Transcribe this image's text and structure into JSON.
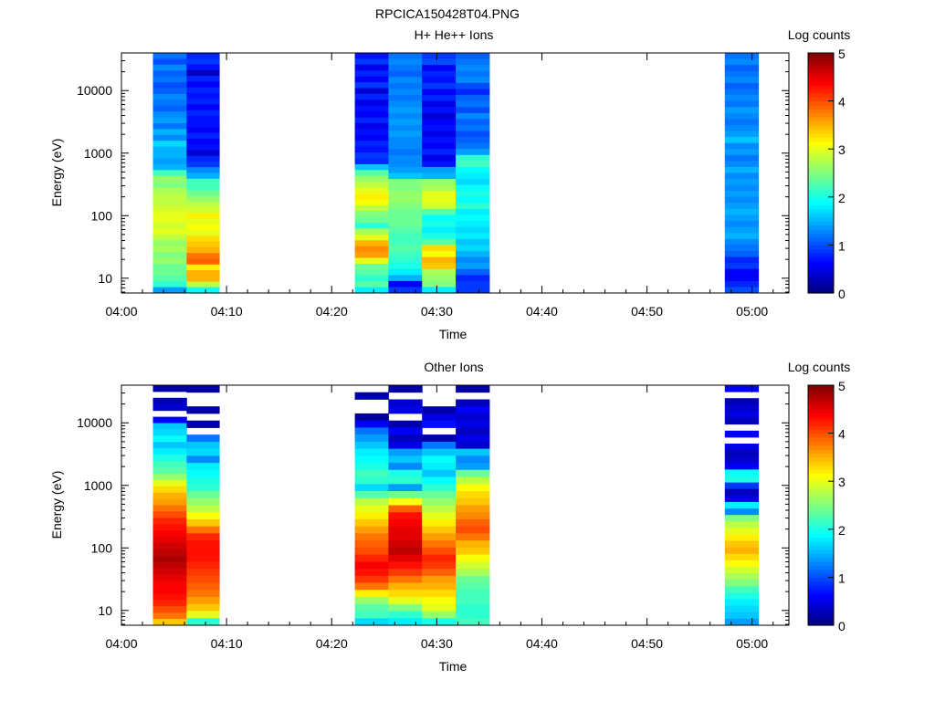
{
  "chart_data": [
    {
      "type": "heatmap",
      "figure_title": "RPCICA150428T04.PNG",
      "title": "H+ He++ Ions",
      "xlabel": "Time",
      "ylabel": "Energy (eV)",
      "xlim_minutes_after_0400": [
        0,
        63.5
      ],
      "x_ticks": [
        "04:00",
        "04:10",
        "04:20",
        "04:30",
        "04:40",
        "04:50",
        "05:00"
      ],
      "x_tick_minutes": [
        0,
        10,
        20,
        30,
        40,
        50,
        60
      ],
      "yscale": "log",
      "ylim": [
        5.8,
        40000
      ],
      "y_ticks": [
        "10",
        "100",
        "1000",
        "10000"
      ],
      "y_tick_values": [
        10,
        100,
        1000,
        10000
      ],
      "colorbar": {
        "label": "Log counts",
        "range": [
          0,
          5
        ],
        "ticks": [
          "0",
          "1",
          "2",
          "3",
          "4",
          "5"
        ]
      },
      "columns": [
        {
          "t_start": 3.0,
          "t_end": 6.2,
          "values_high_to_low": [
            1.2,
            1.0,
            1.3,
            1.1,
            1.2,
            1.0,
            1.1,
            1.3,
            1.2,
            1.1,
            1.3,
            1.4,
            1.2,
            1.5,
            1.3,
            1.7,
            1.5,
            1.5,
            1.4,
            1.5,
            2.2,
            2.6,
            2.5,
            2.7,
            2.8,
            2.8,
            2.9,
            3.0,
            3.0,
            2.9,
            3.0,
            2.8,
            2.6,
            2.7,
            2.5,
            2.6,
            2.4,
            2.4,
            2.3,
            2.1,
            1.4
          ]
        },
        {
          "t_start": 6.2,
          "t_end": 9.3,
          "values_high_to_low": [
            0.8,
            0.9,
            0.7,
            0.3,
            0.8,
            0.6,
            0.8,
            0.7,
            0.8,
            0.6,
            0.8,
            0.7,
            0.7,
            0.6,
            0.8,
            0.6,
            0.7,
            0.4,
            0.8,
            0.9,
            1.3,
            1.5,
            2.2,
            2.2,
            2.4,
            2.6,
            2.8,
            2.9,
            3.2,
            3.0,
            3.1,
            3.0,
            3.3,
            3.4,
            3.5,
            3.8,
            3.9,
            3.2,
            3.5,
            3.5,
            2.8,
            1.9
          ]
        },
        {
          "t_start": 22.2,
          "t_end": 25.4,
          "values_high_to_low": [
            0.7,
            0.9,
            0.5,
            0.8,
            0.6,
            0.9,
            0.4,
            0.8,
            0.5,
            0.7,
            0.6,
            0.8,
            0.5,
            0.7,
            0.6,
            0.8,
            0.7,
            0.9,
            0.8,
            1.6,
            2.3,
            2.6,
            2.8,
            3.0,
            3.2,
            3.1,
            2.8,
            2.5,
            2.4,
            2.1,
            2.7,
            3.0,
            3.5,
            3.7,
            3.6,
            3.0,
            2.4,
            2.3,
            2.1,
            2.3,
            1.8
          ]
        },
        {
          "t_start": 25.4,
          "t_end": 28.6,
          "values_high_to_low": [
            1.2,
            1.3,
            1.2,
            1.1,
            1.3,
            1.2,
            1.3,
            1.2,
            1.3,
            1.4,
            1.3,
            1.4,
            1.3,
            1.4,
            1.3,
            1.3,
            1.2,
            1.3,
            1.3,
            1.4,
            1.6,
            2.5,
            2.5,
            2.6,
            2.6,
            2.5,
            2.4,
            2.4,
            2.4,
            2.3,
            2.2,
            2.2,
            2.3,
            2.2,
            2.1,
            2.0,
            1.8,
            1.5,
            0.6,
            0.9
          ]
        },
        {
          "t_start": 28.6,
          "t_end": 31.8,
          "values_high_to_low": [
            0.9,
            1.0,
            0.6,
            0.8,
            0.7,
            0.9,
            0.6,
            0.8,
            0.5,
            0.7,
            0.4,
            0.6,
            0.7,
            0.5,
            0.7,
            0.6,
            0.8,
            0.5,
            0.7,
            1.4,
            1.5,
            2.6,
            2.7,
            3.0,
            3.0,
            2.9,
            2.3,
            1.9,
            2.0,
            1.8,
            2.0,
            2.3,
            3.3,
            3.1,
            3.5,
            3.4,
            2.7,
            2.6,
            2.5,
            1.8
          ]
        },
        {
          "t_start": 31.8,
          "t_end": 35.0,
          "values_high_to_low": [
            1.1,
            1.2,
            1.3,
            1.2,
            1.3,
            1.0,
            0.8,
            1.1,
            1.2,
            1.0,
            1.3,
            1.1,
            1.2,
            1.0,
            1.1,
            1.2,
            1.4,
            2.1,
            2.2,
            1.9,
            1.8,
            1.7,
            1.9,
            2.0,
            1.9,
            2.1,
            1.8,
            1.9,
            1.8,
            1.7,
            1.8,
            1.6,
            1.7,
            1.5,
            1.3,
            1.4,
            1.1,
            0.8,
            0.9,
            0.9
          ]
        },
        {
          "t_start": 57.4,
          "t_end": 60.6,
          "values_high_to_low": [
            1.2,
            1.3,
            1.1,
            1.2,
            1.3,
            1.1,
            1.2,
            1.3,
            1.2,
            1.4,
            1.3,
            1.2,
            1.3,
            1.4,
            1.6,
            1.3,
            1.4,
            1.2,
            1.3,
            1.5,
            1.3,
            1.4,
            1.3,
            1.4,
            1.3,
            1.4,
            1.5,
            1.4,
            1.3,
            1.4,
            1.5,
            1.3,
            1.2,
            1.1,
            0.8,
            0.9,
            0.6,
            0.6,
            0.8,
            1.0
          ]
        }
      ]
    },
    {
      "type": "heatmap",
      "title": "Other Ions",
      "xlabel": "Time",
      "ylabel": "Energy (eV)",
      "xlim_minutes_after_0400": [
        0,
        63.5
      ],
      "x_ticks": [
        "04:00",
        "04:10",
        "04:20",
        "04:30",
        "04:40",
        "04:50",
        "05:00"
      ],
      "x_tick_minutes": [
        0,
        10,
        20,
        30,
        40,
        50,
        60
      ],
      "yscale": "log",
      "ylim": [
        5.8,
        40000
      ],
      "y_ticks": [
        "10",
        "100",
        "1000",
        "10000"
      ],
      "y_tick_values": [
        10,
        100,
        1000,
        10000
      ],
      "colorbar": {
        "label": "Log counts",
        "range": [
          0,
          5
        ],
        "ticks": [
          "0",
          "1",
          "2",
          "3",
          "4",
          "5"
        ]
      },
      "columns": [
        {
          "t_start": 3.0,
          "t_end": 6.2,
          "values_high_to_low": [
            0.2,
            null,
            0.3,
            0.4,
            null,
            0.6,
            1.6,
            1.7,
            1.9,
            1.6,
            1.8,
            2.0,
            2.2,
            2.3,
            2.6,
            3.0,
            3.3,
            3.5,
            3.6,
            3.8,
            4.0,
            4.2,
            4.3,
            4.4,
            4.5,
            4.6,
            4.7,
            4.8,
            4.7,
            4.6,
            4.5,
            4.4,
            4.4,
            4.3,
            4.2,
            4.0,
            3.8,
            3.4
          ]
        },
        {
          "t_start": 6.2,
          "t_end": 9.3,
          "values_high_to_low": [
            0.2,
            null,
            null,
            0.2,
            null,
            0.2,
            null,
            1.2,
            1.6,
            1.7,
            1.3,
            1.8,
            1.9,
            2.0,
            2.1,
            2.4,
            2.6,
            2.8,
            3.1,
            3.4,
            3.8,
            4.2,
            4.3,
            4.3,
            4.3,
            4.2,
            4.1,
            4.0,
            3.9,
            3.8,
            3.6,
            3.4,
            3.0,
            2.1
          ]
        },
        {
          "t_start": 22.2,
          "t_end": 25.4,
          "values_high_to_low": [
            null,
            0.2,
            null,
            null,
            0.1,
            0.6,
            1.2,
            1.4,
            1.6,
            1.8,
            1.9,
            2.0,
            2.2,
            2.1,
            1.7,
            2.3,
            2.8,
            3.0,
            3.2,
            3.4,
            3.6,
            3.8,
            3.9,
            4.0,
            4.2,
            4.4,
            4.3,
            4.1,
            3.8,
            3.2,
            2.6,
            2.3,
            2.2,
            1.7
          ]
        },
        {
          "t_start": 25.4,
          "t_end": 28.6,
          "values_high_to_low": [
            0.2,
            null,
            0.4,
            0.5,
            null,
            0.2,
            0.6,
            0.3,
            0.5,
            1.4,
            1.6,
            1.3,
            2.0,
            2.1,
            1.4,
            2.4,
            3.1,
            3.9,
            4.3,
            4.4,
            4.5,
            4.5,
            4.6,
            4.7,
            4.5,
            4.3,
            4.1,
            3.8,
            3.5,
            3.3,
            3.0,
            2.5,
            2.1,
            1.8
          ]
        },
        {
          "t_start": 28.6,
          "t_end": 31.8,
          "values_high_to_low": [
            null,
            null,
            null,
            0.2,
            0.5,
            0.7,
            null,
            0.2,
            1.2,
            1.6,
            1.9,
            1.8,
            1.6,
            1.9,
            2.1,
            2.4,
            2.6,
            2.8,
            3.0,
            3.2,
            3.4,
            3.6,
            3.8,
            4.0,
            4.2,
            4.1,
            3.9,
            3.6,
            3.5,
            3.3,
            3.1,
            3.0,
            2.6,
            2.0
          ]
        },
        {
          "t_start": 31.8,
          "t_end": 35.0,
          "values_high_to_low": [
            0.2,
            null,
            0.3,
            0.6,
            0.4,
            0.5,
            0.3,
            0.5,
            0.4,
            1.6,
            1.3,
            1.4,
            2.4,
            2.8,
            3.1,
            3.3,
            3.4,
            3.6,
            3.7,
            3.9,
            4.0,
            3.8,
            3.5,
            3.4,
            3.1,
            2.9,
            2.7,
            2.4,
            2.3,
            2.2,
            2.2,
            2.1,
            2.1,
            2.2
          ]
        },
        {
          "t_start": 57.4,
          "t_end": 60.6,
          "values_high_to_low": [
            0.6,
            null,
            0.3,
            0.4,
            0.5,
            0.3,
            null,
            0.6,
            null,
            0.5,
            0.3,
            0.4,
            0.6,
            1.9,
            2.0,
            0.9,
            0.3,
            0.5,
            1.8,
            1.3,
            2.5,
            2.8,
            3.0,
            3.2,
            3.4,
            3.5,
            3.3,
            3.1,
            2.9,
            2.7,
            2.5,
            2.2,
            2.0,
            1.8,
            1.7,
            1.6,
            1.4
          ]
        }
      ]
    }
  ]
}
